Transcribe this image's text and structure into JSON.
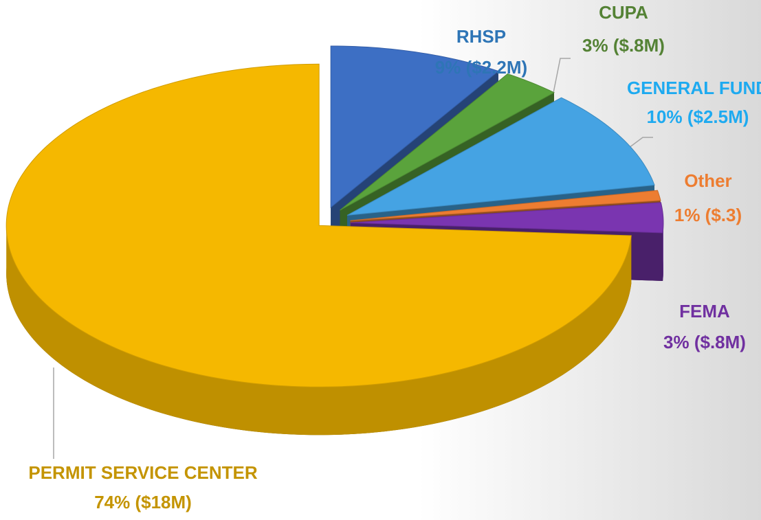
{
  "chart_data": {
    "type": "pie3d",
    "categories": [
      "PERMIT SERVICE CENTER",
      "RHSP",
      "CUPA",
      "GENERAL FUND",
      "Other",
      "FEMA"
    ],
    "values": [
      74,
      9,
      3,
      10,
      1,
      3
    ],
    "value_labels": [
      "74% ($18M)",
      "9% ($2.2M)",
      "3% ($.8M)",
      "10% ($2.5M)",
      "1% ($.3)",
      "3% ($.8M)"
    ],
    "colors": [
      "#f5b800",
      "#3d6fc4",
      "#5aa33c",
      "#45a3e3",
      "#ed7d31",
      "#7a35b0"
    ],
    "label_colors": [
      "#c49400",
      "#2e75b6",
      "#548235",
      "#1eaaf0",
      "#ed7d31",
      "#7030a0"
    ]
  }
}
